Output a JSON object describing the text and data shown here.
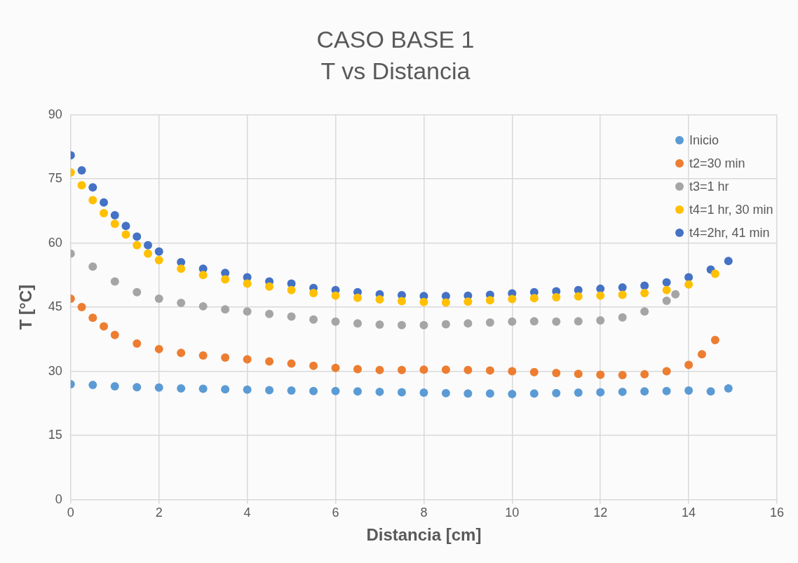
{
  "chart_data": {
    "type": "scatter",
    "title": "CASO BASE 1",
    "subtitle": "T vs Distancia",
    "xlabel": "Distancia [cm]",
    "ylabel": "T [°C]",
    "xlim": [
      0,
      16
    ],
    "xticks": [
      0,
      2,
      4,
      6,
      8,
      10,
      12,
      14,
      16
    ],
    "ylim": [
      0,
      90
    ],
    "yticks": [
      0,
      15,
      30,
      45,
      60,
      75,
      90
    ],
    "grid": true,
    "legend": "top right",
    "marker": "circle",
    "series": [
      {
        "name": "Inicio",
        "color": "#5b9bd5",
        "x": [
          0,
          0.5,
          1,
          1.5,
          2,
          2.5,
          3,
          3.5,
          4,
          4.5,
          5,
          5.5,
          6,
          6.5,
          7,
          7.5,
          8,
          8.5,
          9,
          9.5,
          10,
          10.5,
          11,
          11.5,
          12,
          12.5,
          13,
          13.5,
          14,
          14.5,
          14.9
        ],
        "values": [
          27,
          26.8,
          26.5,
          26.3,
          26.2,
          26,
          25.9,
          25.8,
          25.7,
          25.6,
          25.5,
          25.4,
          25.4,
          25.3,
          25.2,
          25.1,
          25,
          24.9,
          24.8,
          24.8,
          24.7,
          24.8,
          24.9,
          25,
          25.1,
          25.2,
          25.3,
          25.4,
          25.5,
          25.3,
          26
        ]
      },
      {
        "name": "t2=30 min",
        "color": "#ed7d31",
        "x": [
          0,
          0.25,
          0.5,
          0.75,
          1,
          1.5,
          2,
          2.5,
          3,
          3.5,
          4,
          4.5,
          5,
          5.5,
          6,
          6.5,
          7,
          7.5,
          8,
          8.5,
          9,
          9.5,
          10,
          10.5,
          11,
          11.5,
          12,
          12.5,
          13,
          13.5,
          14,
          14.3,
          14.6
        ],
        "values": [
          47,
          45,
          42.5,
          40.5,
          38.5,
          36.5,
          35.2,
          34.3,
          33.7,
          33.2,
          32.8,
          32.3,
          31.8,
          31.3,
          30.8,
          30.5,
          30.3,
          30.3,
          30.4,
          30.4,
          30.3,
          30.2,
          30,
          29.8,
          29.6,
          29.4,
          29.2,
          29.1,
          29.3,
          30,
          31.5,
          34,
          37.3
        ]
      },
      {
        "name": "t3=1 hr",
        "color": "#a5a5a5",
        "x": [
          0,
          0.5,
          1,
          1.5,
          2,
          2.5,
          3,
          3.5,
          4,
          4.5,
          5,
          5.5,
          6,
          6.5,
          7,
          7.5,
          8,
          8.5,
          9,
          9.5,
          10,
          10.5,
          11,
          11.5,
          12,
          12.5,
          13,
          13.5,
          13.7
        ],
        "values": [
          57.5,
          54.5,
          51,
          48.5,
          47,
          46,
          45.2,
          44.5,
          44,
          43.4,
          42.8,
          42.1,
          41.6,
          41.2,
          40.9,
          40.8,
          40.8,
          41,
          41.2,
          41.4,
          41.6,
          41.7,
          41.6,
          41.7,
          41.9,
          42.6,
          44,
          46.5,
          48
        ]
      },
      {
        "name": "t4=1 hr, 30 min",
        "color": "#ffc000",
        "x": [
          0,
          0.25,
          0.5,
          0.75,
          1,
          1.25,
          1.5,
          1.75,
          2,
          2.5,
          3,
          3.5,
          4,
          4.5,
          5,
          5.5,
          6,
          6.5,
          7,
          7.5,
          8,
          8.5,
          9,
          9.5,
          10,
          10.5,
          11,
          11.5,
          12,
          12.5,
          13,
          13.5,
          14,
          14.6
        ],
        "values": [
          76.5,
          73.5,
          70,
          67,
          64.5,
          62,
          59.5,
          57.5,
          56,
          54,
          52.5,
          51.5,
          50.5,
          49.8,
          49,
          48.3,
          47.7,
          47.2,
          46.8,
          46.4,
          46.2,
          46.1,
          46.3,
          46.6,
          46.9,
          47.1,
          47.3,
          47.5,
          47.7,
          47.9,
          48.3,
          49,
          50.3,
          52.8
        ]
      },
      {
        "name": "t4=2hr, 41 min",
        "color": "#4472c4",
        "x": [
          0,
          0.25,
          0.5,
          0.75,
          1,
          1.25,
          1.5,
          1.75,
          2,
          2.5,
          3,
          3.5,
          4,
          4.5,
          5,
          5.5,
          6,
          6.5,
          7,
          7.5,
          8,
          8.5,
          9,
          9.5,
          10,
          10.5,
          11,
          11.5,
          12,
          12.5,
          13,
          13.5,
          14,
          14.5,
          14.9
        ],
        "values": [
          80.5,
          77,
          73,
          69.5,
          66.5,
          64,
          61.5,
          59.5,
          58,
          55.5,
          54,
          53,
          52,
          51,
          50.5,
          49.5,
          49,
          48.5,
          48,
          47.8,
          47.6,
          47.6,
          47.7,
          47.9,
          48.2,
          48.5,
          48.7,
          49,
          49.3,
          49.6,
          50,
          50.8,
          52,
          53.8,
          55.8
        ]
      }
    ]
  }
}
